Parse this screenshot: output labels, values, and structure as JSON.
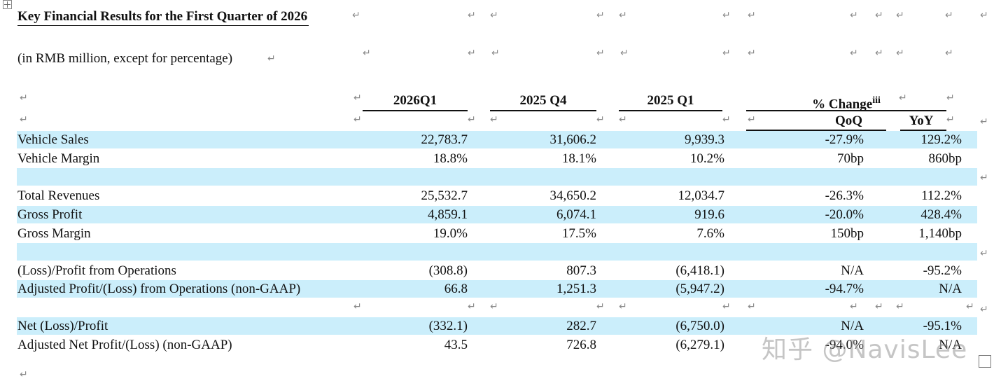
{
  "document": {
    "title": "Key Financial Results for the First Quarter of 2026",
    "subtitle": "(in RMB million, except for percentage)",
    "paragraph_mark": "↵"
  },
  "table": {
    "headers": {
      "col1": "2026Q1",
      "col2": "2025 Q4",
      "col3": "2025 Q1",
      "change_group": "% Change",
      "change_footnote": "iii",
      "qoq": "QoQ",
      "yoy": "YoY"
    },
    "rows": [
      {
        "label": "Vehicle Sales",
        "values": [
          "22,783.7",
          "31,606.2",
          "9,939.3",
          "-27.9%",
          "129.2%"
        ],
        "shaded": true
      },
      {
        "label": "Vehicle Margin",
        "values": [
          "18.8%",
          "18.1%",
          "10.2%",
          "70bp",
          "860bp"
        ],
        "shaded": false
      },
      {
        "label": "",
        "values": [
          "",
          "",
          "",
          "",
          ""
        ],
        "shaded": true
      },
      {
        "label": "Total Revenues",
        "values": [
          "25,532.7",
          "34,650.2",
          "12,034.7",
          "-26.3%",
          "112.2%"
        ],
        "shaded": false
      },
      {
        "label": "Gross Profit",
        "values": [
          "4,859.1",
          "6,074.1",
          "919.6",
          "-20.0%",
          "428.4%"
        ],
        "shaded": true
      },
      {
        "label": "Gross Margin",
        "values": [
          "19.0%",
          "17.5%",
          "7.6%",
          "150bp",
          "1,140bp"
        ],
        "shaded": false
      },
      {
        "label": "",
        "values": [
          "",
          "",
          "",
          "",
          ""
        ],
        "shaded": true
      },
      {
        "label": "(Loss)/Profit from Operations",
        "values": [
          "(308.8)",
          "807.3",
          "(6,418.1)",
          "N/A",
          "-95.2%"
        ],
        "shaded": false
      },
      {
        "label": "Adjusted Profit/(Loss) from Operations (non-GAAP)",
        "values": [
          "66.8",
          "1,251.3",
          "(5,947.2)",
          "-94.7%",
          "N/A"
        ],
        "shaded": true
      },
      {
        "label": "",
        "values": [
          "",
          "",
          "",
          "",
          ""
        ],
        "shaded": false
      },
      {
        "label": "Net (Loss)/Profit",
        "values": [
          "(332.1)",
          "282.7",
          "(6,750.0)",
          "N/A",
          "-95.1%"
        ],
        "shaded": true
      },
      {
        "label": "Adjusted Net Profit/(Loss) (non-GAAP)",
        "values": [
          "43.5",
          "726.8",
          "(6,279.1)",
          "-94.0%",
          "N/A"
        ],
        "shaded": false
      }
    ]
  },
  "watermark": {
    "text": "知乎 @NavisLee"
  },
  "colors": {
    "row_shade": "#cbeefb",
    "mark": "#8a8a8a"
  }
}
